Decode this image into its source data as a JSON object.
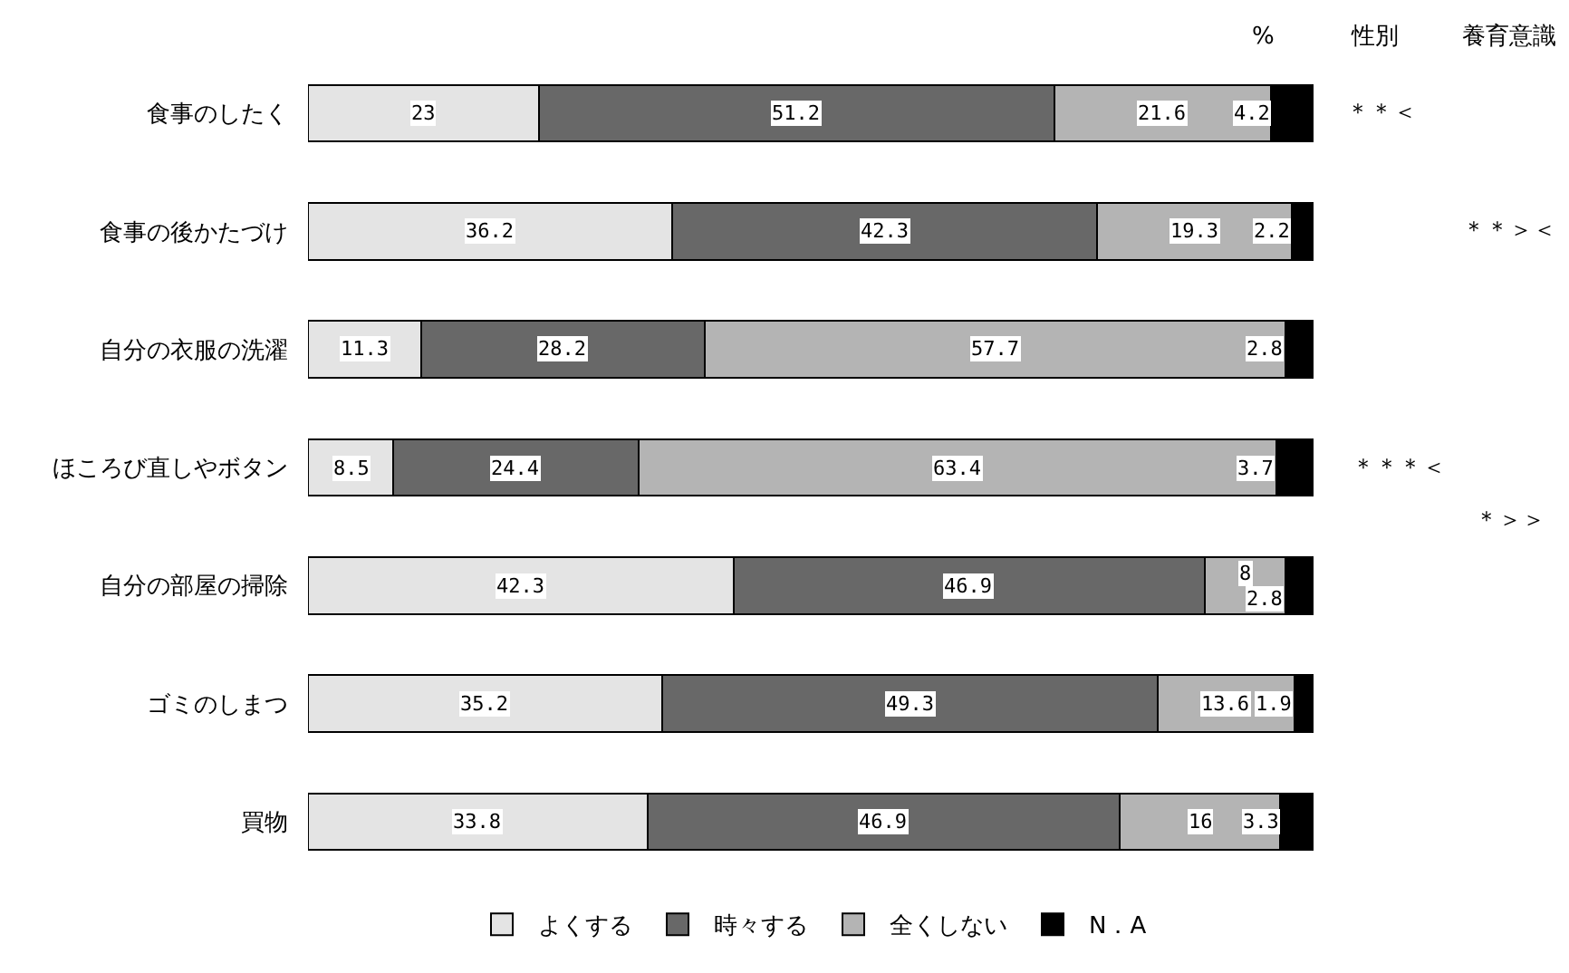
{
  "chart_data": {
    "type": "bar",
    "orientation": "horizontal",
    "stacked": true,
    "categories": [
      "食事のしたく",
      "食事の後かたづけ",
      "自分の衣服の洗濯",
      "ほころび直しやボタン",
      "自分の部屋の掃除",
      "ゴミのしまつ",
      "買物"
    ],
    "series": [
      {
        "name": "よくする",
        "color": "#e4e4e4",
        "values": [
          23,
          36.2,
          11.3,
          8.5,
          42.3,
          35.2,
          33.8
        ]
      },
      {
        "name": "時々する",
        "color": "#686868",
        "values": [
          51.2,
          42.3,
          28.2,
          24.4,
          46.9,
          49.3,
          46.9
        ]
      },
      {
        "name": "全くしない",
        "color": "#b4b4b4",
        "values": [
          21.6,
          19.3,
          57.7,
          63.4,
          8,
          13.6,
          16
        ]
      },
      {
        "name": "N．A",
        "color": "#000000",
        "values": [
          4.2,
          2.2,
          2.8,
          3.7,
          2.8,
          1.9,
          3.3
        ]
      }
    ],
    "xlim": [
      0,
      100
    ],
    "tick_labels": "y",
    "data_labels": true,
    "legend": "bottom",
    "grid": false,
    "annotations": [
      "%",
      "性別",
      "養育意識",
      "＊＊＜",
      "＊＊＞＜",
      "＊＊＊＜",
      "＊＞＞"
    ]
  }
}
